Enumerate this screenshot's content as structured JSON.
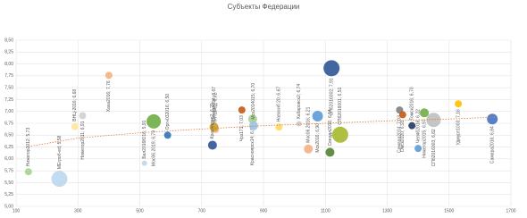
{
  "chart_data": {
    "type": "bubble",
    "title": "Субъекты Федерации",
    "xlim": [
      100,
      1700
    ],
    "xticks": [
      100,
      300,
      500,
      700,
      900,
      1100,
      1300,
      1500,
      1700
    ],
    "ylim": [
      5,
      8.5
    ],
    "yticks": [
      {
        "value": 5,
        "label": "5,00"
      },
      {
        "value": 5.25,
        "label": "5,25"
      },
      {
        "value": 5.5,
        "label": "5,50"
      },
      {
        "value": 5.75,
        "label": "5,75"
      },
      {
        "value": 6,
        "label": "6,00"
      },
      {
        "value": 6.25,
        "label": "6,25"
      },
      {
        "value": 6.5,
        "label": "6,50"
      },
      {
        "value": 6.75,
        "label": "6,75"
      },
      {
        "value": 7,
        "label": "7,00"
      },
      {
        "value": 7.25,
        "label": "7,25"
      },
      {
        "value": 7.5,
        "label": "7,50"
      },
      {
        "value": 7.75,
        "label": "7,75"
      },
      {
        "value": 8,
        "label": "8,00"
      },
      {
        "value": 8.25,
        "label": "8,25"
      },
      {
        "value": 8.5,
        "label": "8,50"
      }
    ],
    "grid": true,
    "x": [
      140,
      240,
      290,
      315,
      400,
      515,
      545,
      590,
      745,
      740,
      735,
      865,
      830,
      868,
      950,
      1015,
      1045,
      1075,
      1115,
      1120,
      1148,
      1340,
      1350,
      1380,
      1400,
      1420,
      1450,
      1530,
      1640
    ],
    "values": [
      5.73,
      5.58,
      6.68,
      6.91,
      7.76,
      5.91,
      6.79,
      6.5,
      6.62,
      6.67,
      6.29,
      6.84,
      7.03,
      6.7,
      6.67,
      6.74,
      6.21,
      6.9,
      6.14,
      7.91,
      6.51,
      7.03,
      6.93,
      6.7,
      6.22,
      6.97,
      6.82,
      7.16,
      6.84
    ],
    "sizes": [
      4,
      9,
      4,
      4,
      4,
      3,
      8,
      4,
      4,
      5,
      5,
      5,
      4,
      5,
      4,
      3,
      5,
      6,
      5,
      9,
      9,
      4,
      4,
      4,
      4,
      5,
      8,
      4,
      6
    ],
    "colors": [
      "#a9d18e",
      "#bdd7ee",
      "#ffe699",
      "#d0d0d0",
      "#f4b183",
      "#bdd7ee",
      "#70ad47",
      "#2e75b6",
      "#f4b183",
      "#c9a227",
      "#2f5597",
      "#a9d18e",
      "#c55a11",
      "#9dc3e6",
      "#ffd966",
      "#c9c9c9",
      "#f4b183",
      "#5b9bd5",
      "#548235",
      "#2f5597",
      "#a5b82d",
      "#7f7f7f",
      "#c55a11",
      "#203864",
      "#5b9bd5",
      "#70ad47",
      "#bfbfbf",
      "#ffc000",
      "#4472c4"
    ],
    "labels": [
      "Нижегор2012; 5,73",
      "МЕгроб-ed; 5,58",
      "ВНЦ-2016; 6,68",
      "Нижегор2011; 6,91",
      "Хака2016; 7,76",
      "Бел2016Ю16; 5,91",
      "Мос06.2019; 6,79",
      "Оргн032016; 6,50",
      "Янт-11-ед; 6,62",
      "Свердл094; 6,67",
      "Краснодар2; 6,29",
      "Красноярск14; 6,84",
      "Чрз171; 7,03",
      "Мск2014015; 6,70",
      "Новосиб 20; 6,67",
      "Хабаровск2; 6,74",
      "Мос06.2016; 6,21",
      "Мск2016; 6,90",
      "Свердл2016; 6,14",
      "СПб2016002; 7,91",
      "СПб2016001; 6,51",
      "Самара2014; 7,03",
      "Омск2020; 6,93",
      "Томск2016; 6,70",
      "Челяб2016; 6,22",
      "Нижегор2015; 6,97",
      "СПб2016003; 6,82",
      "Удмурт1003; 7,16",
      "Самара2016; 6,84"
    ],
    "trendline": {
      "color": "#e07b39",
      "x": [
        140,
        300,
        500,
        700,
        900,
        1100,
        1300,
        1500,
        1650
      ],
      "y": [
        6.26,
        6.44,
        6.55,
        6.63,
        6.7,
        6.75,
        6.8,
        6.84,
        6.88
      ]
    }
  }
}
